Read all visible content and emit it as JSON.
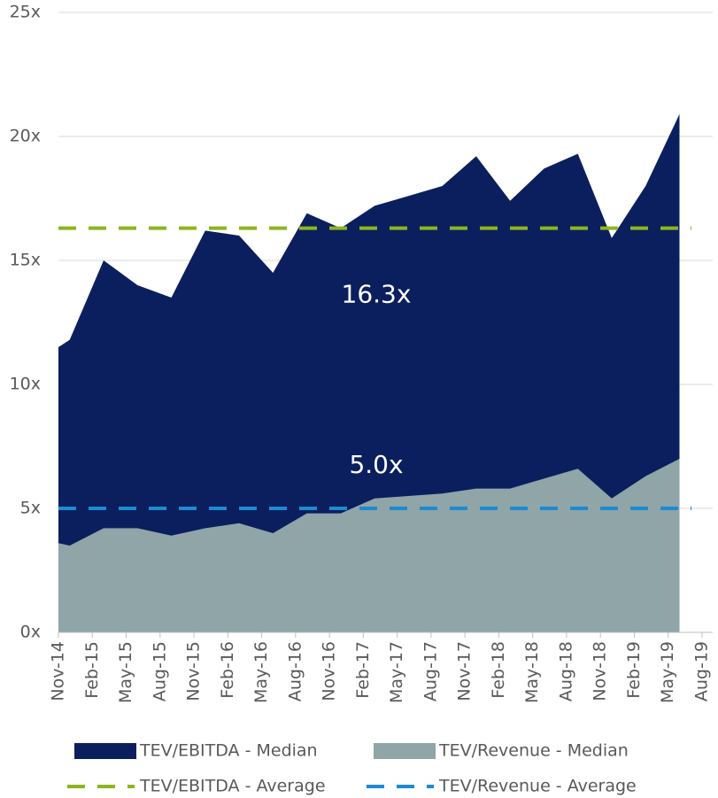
{
  "chart_data": {
    "type": "area",
    "x": [
      "Nov-14",
      "Dec-14",
      "Mar-15",
      "Jun-15",
      "Sep-15",
      "Dec-15",
      "Mar-16",
      "Jun-16",
      "Sep-16",
      "Dec-16",
      "Mar-17",
      "Jun-17",
      "Sep-17",
      "Dec-17",
      "Mar-18",
      "Jun-18",
      "Sep-18",
      "Dec-18",
      "Mar-19",
      "Jun-19"
    ],
    "series": [
      {
        "name": "TEV/EBITDA - Median",
        "color": "#0b1f5e",
        "values": [
          11.5,
          11.8,
          15.0,
          14.0,
          13.5,
          16.2,
          16.0,
          14.5,
          16.9,
          16.3,
          17.2,
          17.6,
          18.0,
          19.2,
          17.4,
          18.7,
          19.3,
          15.9,
          18.0,
          20.9
        ]
      },
      {
        "name": "TEV/Revenue - Median",
        "color": "#8fa5a8",
        "values": [
          3.6,
          3.5,
          4.2,
          4.2,
          3.9,
          4.2,
          4.4,
          4.0,
          4.8,
          4.8,
          5.4,
          5.5,
          5.6,
          5.8,
          5.8,
          6.2,
          6.6,
          5.4,
          6.3,
          7.0
        ]
      }
    ],
    "averages": [
      {
        "name": "TEV/EBITDA - Average",
        "color": "#8db51e",
        "value": 16.3,
        "value_label": "16.3x"
      },
      {
        "name": "TEV/Revenue - Average",
        "color": "#1d8ad1",
        "value": 5.0,
        "value_label": "5.0x"
      }
    ],
    "xticks": [
      "Nov-14",
      "Feb-15",
      "May-15",
      "Aug-15",
      "Nov-15",
      "Feb-16",
      "May-16",
      "Aug-16",
      "Nov-16",
      "Feb-17",
      "May-17",
      "Aug-17",
      "Nov-17",
      "Feb-18",
      "May-18",
      "Aug-18",
      "Nov-18",
      "Feb-19",
      "May-19",
      "Aug-19"
    ],
    "ylim": [
      0,
      25
    ],
    "yticks": [
      {
        "value": 0,
        "label": "0x"
      },
      {
        "value": 5,
        "label": "5x"
      },
      {
        "value": 10,
        "label": "10x"
      },
      {
        "value": 15,
        "label": "15x"
      },
      {
        "value": 20,
        "label": "20x"
      },
      {
        "value": 25,
        "label": "25x"
      }
    ],
    "grid": true
  }
}
